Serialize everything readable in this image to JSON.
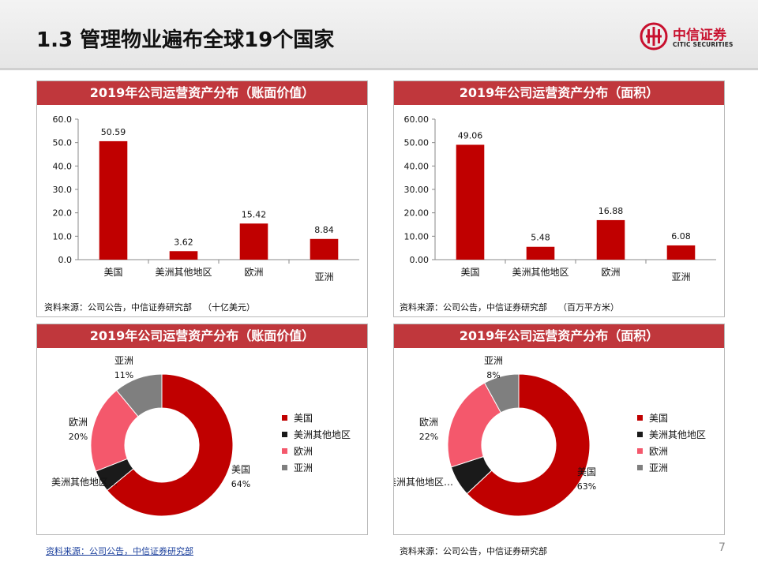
{
  "header": {
    "title": "1.3 管理物业遍布全球19个国家",
    "logo_name": "中信证券",
    "logo_sub": "CITIC SECURITIES"
  },
  "colors": {
    "red": "#c00000",
    "black": "#1a1a1a",
    "pink": "#f4586c",
    "gray": "#7f7f7f",
    "title_bar": "#c0373c"
  },
  "panels": [
    {
      "title": "2019年公司运营资产分布（账面价值）",
      "source": "资料来源：公司公告，中信证券研究部",
      "unit": "（十亿美元）"
    },
    {
      "title": "2019年公司运营资产分布（面积）",
      "source": "资料来源：公司公告，中信证券研究部",
      "unit": "（百万平方米）"
    },
    {
      "title": "2019年公司运营资产分布（账面价值）",
      "source": "资料来源：公司公告，中信证券研究部"
    },
    {
      "title": "2019年公司运营资产分布（面积）",
      "source": "资料来源：公司公告，中信证券研究部"
    }
  ],
  "legend": [
    "美国",
    "美洲其他地区",
    "欧洲",
    "亚洲"
  ],
  "chart_data": [
    {
      "type": "bar",
      "categories": [
        "美国",
        "美洲其他地区",
        "欧洲",
        "亚洲"
      ],
      "values": [
        50.59,
        3.62,
        15.42,
        8.84
      ],
      "data_labels": [
        "50.59",
        "3.62",
        "15.42",
        "8.84"
      ],
      "yticks": [
        "0.0",
        "10.0",
        "20.0",
        "30.0",
        "40.0",
        "50.0",
        "60.0"
      ],
      "ylim": [
        0,
        60
      ],
      "title": "2019年公司运营资产分布（账面价值）"
    },
    {
      "type": "bar",
      "categories": [
        "美国",
        "美洲其他地区",
        "欧洲",
        "亚洲"
      ],
      "values": [
        49.06,
        5.48,
        16.88,
        6.08
      ],
      "data_labels": [
        "49.06",
        "5.48",
        "16.88",
        "6.08"
      ],
      "yticks": [
        "0.00",
        "10.00",
        "20.00",
        "30.00",
        "40.00",
        "50.00",
        "60.00"
      ],
      "ylim": [
        0,
        60
      ],
      "title": "2019年公司运营资产分布（面积）"
    },
    {
      "type": "pie",
      "variant": "donut",
      "title": "2019年公司运营资产分布（账面价值）",
      "labels": [
        "美国",
        "美洲其他地区",
        "欧洲",
        "亚洲"
      ],
      "values": [
        64,
        5,
        20,
        11
      ],
      "slice_labels": [
        {
          "name": "美国",
          "pct": "64%"
        },
        {
          "name": "美洲其他地区…",
          "pct": ""
        },
        {
          "name": "欧洲",
          "pct": "20%"
        },
        {
          "name": "亚洲",
          "pct": "11%"
        }
      ]
    },
    {
      "type": "pie",
      "variant": "donut",
      "title": "2019年公司运营资产分布（面积）",
      "labels": [
        "美国",
        "美洲其他地区",
        "欧洲",
        "亚洲"
      ],
      "values": [
        63,
        7,
        22,
        8
      ],
      "slice_labels": [
        {
          "name": "美国",
          "pct": "63%"
        },
        {
          "name": "美洲其他地区…",
          "pct": ""
        },
        {
          "name": "欧洲",
          "pct": "22%"
        },
        {
          "name": "亚洲",
          "pct": "8%"
        }
      ]
    }
  ],
  "page_number": "7"
}
